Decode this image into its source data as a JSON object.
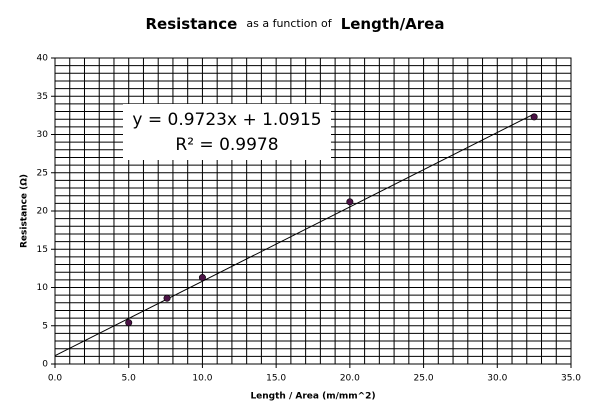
{
  "chart_data": {
    "type": "scatter",
    "title": [
      "Resistance",
      "as a function of",
      "Length/Area"
    ],
    "x_label": "Length / Area (m/mm^2)",
    "y_label": "Resistance (Ω)",
    "series": [
      {
        "name": "Resistance",
        "color": "#4b1245",
        "x": [
          5,
          7.6,
          10,
          20,
          32.5
        ],
        "values": [
          5.4,
          8.6,
          11.3,
          21.2,
          32.3
        ]
      }
    ],
    "trendline": {
      "slope": 0.9723,
      "intercept": 1.0915,
      "equation": "y = 0.9723x + 1.0915",
      "r_squared_label": "R² = 0.9978"
    },
    "xlim": [
      0,
      35
    ],
    "xticks": [
      {
        "value": 0,
        "label": "0.0"
      },
      {
        "value": 5,
        "label": "5.0"
      },
      {
        "value": 10,
        "label": "10.0"
      },
      {
        "value": 15,
        "label": "15.0"
      },
      {
        "value": 20,
        "label": "20.0"
      },
      {
        "value": 25,
        "label": "25.0"
      },
      {
        "value": 30,
        "label": "30.0"
      },
      {
        "value": 35,
        "label": "35.0"
      }
    ],
    "ylim": [
      0,
      40
    ],
    "yticks": [
      0,
      5,
      10,
      15,
      20,
      25,
      30,
      35,
      40
    ],
    "grid": true,
    "minor_grid_step_x": 1,
    "minor_grid_step_y": 1
  }
}
